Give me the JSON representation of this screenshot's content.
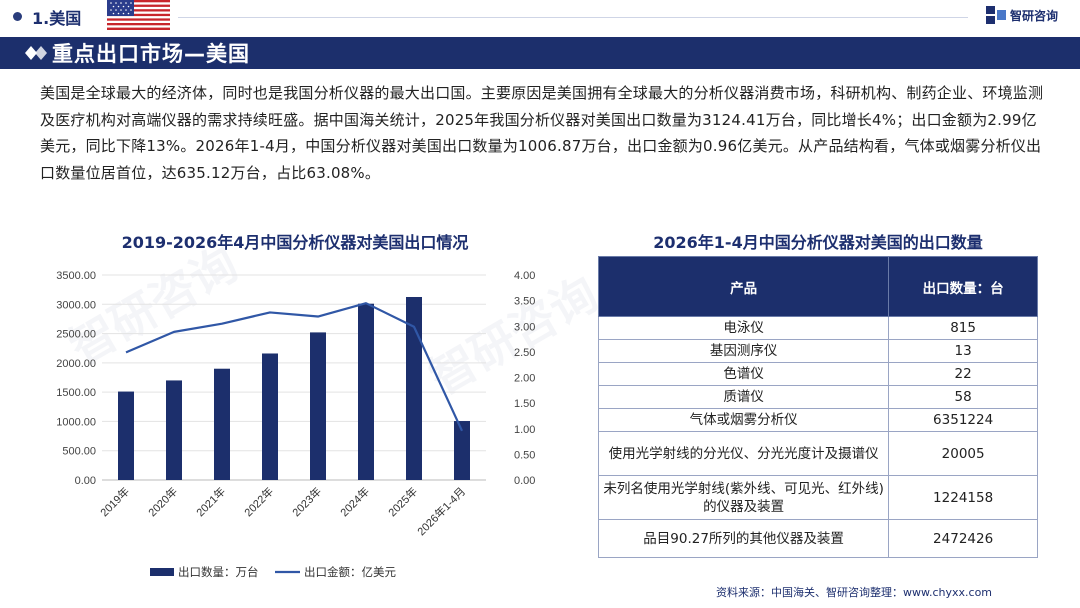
{
  "header": {
    "section_label": "1.美国",
    "logo_text": "智研咨询"
  },
  "title_bar": {
    "title": "重点出口市场—美国"
  },
  "paragraph": "美国是全球最大的经济体，同时也是我国分析仪器的最大出口国。主要原因是美国拥有全球最大的分析仪器消费市场，科研机构、制药企业、环境监测及医疗机构对高端仪器的需求持续旺盛。据中国海关统计，2025年我国分析仪器对美国出口数量为3124.41万台，同比增长4%；出口金额为2.99亿美元，同比下降13%。2026年1-4月，中国分析仪器对美国出口数量为1006.87万台，出口金额为0.96亿美元。从产品结构看，气体或烟雾分析仪出口数量位居首位，达635.12万台，占比63.08%。",
  "chart_title": "2019-2026年4月中国分析仪器对美国出口情况",
  "chart_data": {
    "type": "bar+line",
    "categories": [
      "2019年",
      "2020年",
      "2021年",
      "2022年",
      "2023年",
      "2024年",
      "2025年",
      "2026年1-4月"
    ],
    "series": [
      {
        "name": "出口数量：万台",
        "type": "bar",
        "axis": "left",
        "color": "#1c2f6c",
        "values": [
          1510,
          1700,
          1900,
          2160,
          2520,
          3010,
          3124.41,
          1006.87
        ]
      },
      {
        "name": "出口金额：亿美元",
        "type": "line",
        "axis": "right",
        "color": "#3057a6",
        "values": [
          2.49,
          2.89,
          3.05,
          3.27,
          3.19,
          3.45,
          2.99,
          0.96
        ]
      }
    ],
    "y_left": {
      "min": 0,
      "max": 3500,
      "ticks": [
        "0.00",
        "500.00",
        "1000.00",
        "1500.00",
        "2000.00",
        "2500.00",
        "3000.00",
        "3500.00"
      ]
    },
    "y_right": {
      "min": 0,
      "max": 4,
      "ticks": [
        "0.00",
        "0.50",
        "1.00",
        "1.50",
        "2.00",
        "2.50",
        "3.00",
        "3.50",
        "4.00"
      ]
    },
    "grid": true,
    "legend": "bottom"
  },
  "table": {
    "title": "2026年1-4月中国分析仪器对美国的出口数量",
    "headers": [
      "产品",
      "出口数量：台"
    ],
    "rows": [
      [
        "电泳仪",
        "815"
      ],
      [
        "基因测序仪",
        "13"
      ],
      [
        "色谱仪",
        "22"
      ],
      [
        "质谱仪",
        "58"
      ],
      [
        "气体或烟雾分析仪",
        "6351224"
      ],
      [
        "使用光学射线的分光仪、分光光度计及摄谱仪",
        "20005"
      ],
      [
        "未列名使用光学射线(紫外线、可见光、红外线)的仪器及装置",
        "1224158"
      ],
      [
        "品目90.27所列的其他仪器及装置",
        "2472426"
      ]
    ]
  },
  "source": "资料来源：中国海关、智研咨询整理：www.chyxx.com",
  "colors": {
    "navy": "#1c2f6c",
    "line": "#3057a6"
  }
}
